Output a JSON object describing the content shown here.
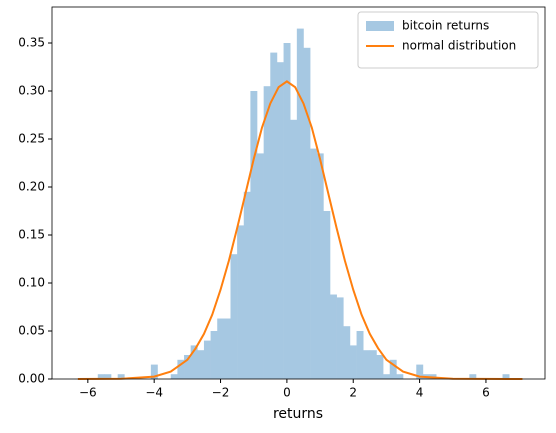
{
  "chart_data": {
    "type": "histogram",
    "xlabel": "returns",
    "series": [
      {
        "name": "bitcoin returns",
        "type": "histogram",
        "color": "#a6c8e2",
        "bins": [
          -6.3,
          -6.1,
          -5.9,
          -5.7,
          -5.5,
          -5.3,
          -5.1,
          -4.9,
          -4.7,
          -4.5,
          -4.3,
          -4.1,
          -3.9,
          -3.7,
          -3.5,
          -3.3,
          -3.1,
          -2.9,
          -2.7,
          -2.5,
          -2.3,
          -2.1,
          -1.9,
          -1.7,
          -1.5,
          -1.3,
          -1.1,
          -0.9,
          -0.7,
          -0.5,
          -0.3,
          -0.1,
          0.1,
          0.3,
          0.5,
          0.7,
          0.9,
          1.1,
          1.3,
          1.5,
          1.7,
          1.9,
          2.1,
          2.3,
          2.5,
          2.7,
          2.9,
          3.1,
          3.3,
          3.5,
          3.7,
          3.9,
          4.1,
          4.3,
          4.5,
          4.7,
          4.9,
          5.1,
          5.3,
          5.5,
          5.7,
          5.9,
          6.1,
          6.3,
          6.5,
          6.7,
          6.9,
          7.1
        ],
        "values": [
          0,
          0,
          0,
          0.005,
          0.005,
          0,
          0.005,
          0,
          0,
          0,
          0,
          0.015,
          0,
          0,
          0.005,
          0.02,
          0.025,
          0.035,
          0.03,
          0.04,
          0.05,
          0.063,
          0.063,
          0.13,
          0.16,
          0.195,
          0.3,
          0.235,
          0.305,
          0.34,
          0.33,
          0.35,
          0.27,
          0.365,
          0.345,
          0.24,
          0.235,
          0.175,
          0.088,
          0.085,
          0.055,
          0.035,
          0.05,
          0.03,
          0.03,
          0.025,
          0.005,
          0.02,
          0.005,
          0,
          0,
          0.015,
          0.005,
          0.005,
          0,
          0,
          0,
          0,
          0,
          0.005,
          0,
          0,
          0,
          0,
          0.005,
          0,
          0
        ]
      },
      {
        "name": "normal distribution",
        "type": "line",
        "color": "#ff7f0e",
        "x": [
          -6.3,
          -5,
          -4,
          -3.5,
          -3,
          -2.75,
          -2.5,
          -2.25,
          -2,
          -1.75,
          -1.5,
          -1.25,
          -1,
          -0.75,
          -0.5,
          -0.25,
          0,
          0.25,
          0.5,
          0.75,
          1,
          1.25,
          1.5,
          1.75,
          2,
          2.25,
          2.5,
          2.75,
          3,
          3.5,
          4,
          5,
          7.1
        ],
        "values": [
          0,
          0.0002,
          0.0025,
          0.0077,
          0.02,
          0.032,
          0.047,
          0.067,
          0.093,
          0.123,
          0.157,
          0.193,
          0.229,
          0.262,
          0.287,
          0.304,
          0.31,
          0.304,
          0.287,
          0.262,
          0.229,
          0.193,
          0.157,
          0.123,
          0.093,
          0.067,
          0.047,
          0.032,
          0.02,
          0.0077,
          0.0025,
          0.0002,
          0
        ]
      }
    ],
    "xlim": [
      -7.08,
      7.78
    ],
    "ylim": [
      0,
      0.3875
    ],
    "xticks": [
      {
        "value": -6,
        "label": "−6"
      },
      {
        "value": -4,
        "label": "−4"
      },
      {
        "value": -2,
        "label": "−2"
      },
      0,
      2,
      4,
      6
    ],
    "yticks": [
      {
        "value": 0,
        "label": "0.00"
      },
      {
        "value": 0.05,
        "label": "0.05"
      },
      {
        "value": 0.1,
        "label": "0.10"
      },
      {
        "value": 0.15,
        "label": "0.15"
      },
      {
        "value": 0.2,
        "label": "0.20"
      },
      {
        "value": 0.25,
        "label": "0.25"
      },
      {
        "value": 0.3,
        "label": "0.30"
      },
      {
        "value": 0.35,
        "label": "0.35"
      }
    ],
    "legend": "upper right"
  }
}
